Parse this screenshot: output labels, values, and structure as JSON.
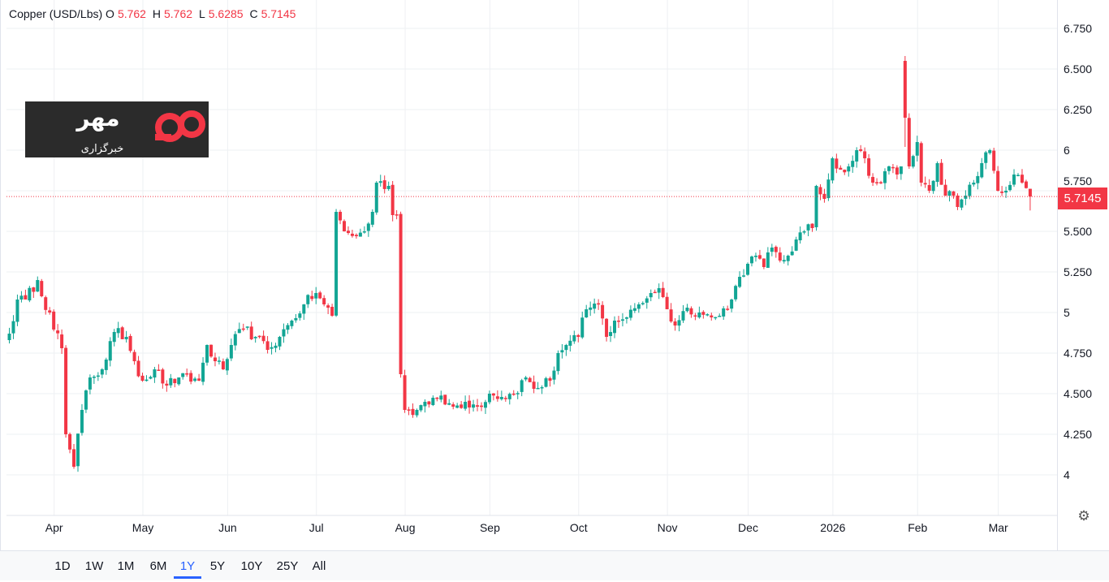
{
  "legend": {
    "symbol": "Copper (USD/Lbs)",
    "o_label": "O",
    "o": "5.762",
    "h_label": "H",
    "h": "5.762",
    "l_label": "L",
    "l": "5.6285",
    "c_label": "C",
    "c": "5.7145"
  },
  "current_price": "5.7145",
  "logo": {
    "brand_text": "مهر",
    "sub_text": "خبرگزاری"
  },
  "settings_icon": "gear-icon",
  "ranges": [
    {
      "label": "1D",
      "active": false
    },
    {
      "label": "1W",
      "active": false
    },
    {
      "label": "1M",
      "active": false
    },
    {
      "label": "6M",
      "active": false
    },
    {
      "label": "1Y",
      "active": true
    },
    {
      "label": "5Y",
      "active": false
    },
    {
      "label": "10Y",
      "active": false
    },
    {
      "label": "25Y",
      "active": false
    },
    {
      "label": "All",
      "active": false
    }
  ],
  "colors": {
    "up": "#12a594",
    "down": "#f23645",
    "grid": "#eef0f3"
  },
  "chart_data": {
    "type": "candlestick",
    "title": "Copper (USD/Lbs)",
    "ylim": [
      3.8,
      6.85
    ],
    "y_ticks": [
      4,
      4.25,
      4.5,
      4.75,
      5,
      5.25,
      5.5,
      5.75,
      6,
      6.25,
      6.5,
      6.75
    ],
    "y_tick_labels": [
      "4",
      "4.250",
      "4.500",
      "4.750",
      "5",
      "5.250",
      "5.500",
      "5.750",
      "6",
      "6.250",
      "6.500",
      "6.750"
    ],
    "num_sessions": 254,
    "x_ticks": [
      {
        "label": "Apr",
        "session": 11
      },
      {
        "label": "May",
        "session": 33
      },
      {
        "label": "Jun",
        "session": 54
      },
      {
        "label": "Jul",
        "session": 76
      },
      {
        "label": "Aug",
        "session": 98
      },
      {
        "label": "Sep",
        "session": 119
      },
      {
        "label": "Oct",
        "session": 141
      },
      {
        "label": "Nov",
        "session": 163
      },
      {
        "label": "Dec",
        "session": 183
      },
      {
        "label": "2026",
        "session": 204
      },
      {
        "label": "Feb",
        "session": 225
      },
      {
        "label": "Mar",
        "session": 245
      }
    ],
    "close_keypoints": [
      [
        0,
        4.87
      ],
      [
        2,
        5.08
      ],
      [
        4,
        5.08
      ],
      [
        7,
        5.2
      ],
      [
        8,
        5.1
      ],
      [
        10,
        5.0
      ],
      [
        13,
        4.78
      ],
      [
        14,
        4.25
      ],
      [
        16,
        4.05
      ],
      [
        18,
        4.4
      ],
      [
        20,
        4.6
      ],
      [
        23,
        4.65
      ],
      [
        26,
        4.88
      ],
      [
        29,
        4.85
      ],
      [
        31,
        4.7
      ],
      [
        33,
        4.58
      ],
      [
        36,
        4.65
      ],
      [
        39,
        4.55
      ],
      [
        42,
        4.6
      ],
      [
        47,
        4.58
      ],
      [
        49,
        4.8
      ],
      [
        51,
        4.7
      ],
      [
        53,
        4.65
      ],
      [
        55,
        4.8
      ],
      [
        58,
        4.9
      ],
      [
        61,
        4.85
      ],
      [
        64,
        4.77
      ],
      [
        67,
        4.85
      ],
      [
        70,
        4.95
      ],
      [
        73,
        5.05
      ],
      [
        76,
        5.12
      ],
      [
        78,
        5.05
      ],
      [
        80,
        4.98
      ],
      [
        81,
        5.62
      ],
      [
        83,
        5.5
      ],
      [
        86,
        5.47
      ],
      [
        88,
        5.5
      ],
      [
        90,
        5.62
      ],
      [
        91,
        5.8
      ],
      [
        94,
        5.78
      ],
      [
        95,
        5.6
      ],
      [
        96,
        5.6
      ],
      [
        97,
        4.62
      ],
      [
        98,
        4.4
      ],
      [
        101,
        4.4
      ],
      [
        103,
        4.45
      ],
      [
        106,
        4.47
      ],
      [
        110,
        4.42
      ],
      [
        113,
        4.45
      ],
      [
        116,
        4.42
      ],
      [
        119,
        4.5
      ],
      [
        122,
        4.48
      ],
      [
        125,
        4.5
      ],
      [
        128,
        4.6
      ],
      [
        130,
        4.53
      ],
      [
        134,
        4.58
      ],
      [
        136,
        4.75
      ],
      [
        138,
        4.8
      ],
      [
        141,
        4.85
      ],
      [
        143,
        5.02
      ],
      [
        146,
        5.05
      ],
      [
        148,
        4.85
      ],
      [
        150,
        4.95
      ],
      [
        153,
        4.97
      ],
      [
        156,
        5.05
      ],
      [
        159,
        5.12
      ],
      [
        161,
        5.15
      ],
      [
        163,
        5.02
      ],
      [
        165,
        4.92
      ],
      [
        168,
        5.03
      ],
      [
        171,
        5.0
      ],
      [
        174,
        4.97
      ],
      [
        176,
        4.98
      ],
      [
        179,
        5.08
      ],
      [
        181,
        5.22
      ],
      [
        183,
        5.3
      ],
      [
        185,
        5.35
      ],
      [
        187,
        5.28
      ],
      [
        189,
        5.4
      ],
      [
        191,
        5.32
      ],
      [
        193,
        5.35
      ],
      [
        195,
        5.45
      ],
      [
        197,
        5.5
      ],
      [
        199,
        5.52
      ],
      [
        200,
        5.78
      ],
      [
        202,
        5.7
      ],
      [
        204,
        5.95
      ],
      [
        206,
        5.88
      ],
      [
        208,
        5.9
      ],
      [
        210,
        6.0
      ],
      [
        212,
        5.95
      ],
      [
        214,
        5.8
      ],
      [
        216,
        5.8
      ],
      [
        218,
        5.9
      ],
      [
        220,
        5.85
      ],
      [
        221,
        5.9
      ],
      [
        222,
        6.2
      ],
      [
        223,
        5.9
      ],
      [
        225,
        6.05
      ],
      [
        226,
        5.8
      ],
      [
        228,
        5.75
      ],
      [
        230,
        5.92
      ],
      [
        232,
        5.72
      ],
      [
        234,
        5.72
      ],
      [
        235,
        5.65
      ],
      [
        237,
        5.72
      ],
      [
        239,
        5.8
      ],
      [
        241,
        5.92
      ],
      [
        243,
        6.0
      ],
      [
        245,
        5.75
      ],
      [
        247,
        5.75
      ],
      [
        249,
        5.85
      ],
      [
        251,
        5.8
      ],
      [
        253,
        5.7145
      ]
    ],
    "overrides": [
      {
        "session": 222,
        "open": 6.55,
        "high": 6.58,
        "low": 6.02,
        "close": 6.2
      },
      {
        "session": 253,
        "open": 5.762,
        "high": 5.762,
        "low": 5.6285,
        "close": 5.7145
      }
    ],
    "last_price_line": 5.7145
  }
}
